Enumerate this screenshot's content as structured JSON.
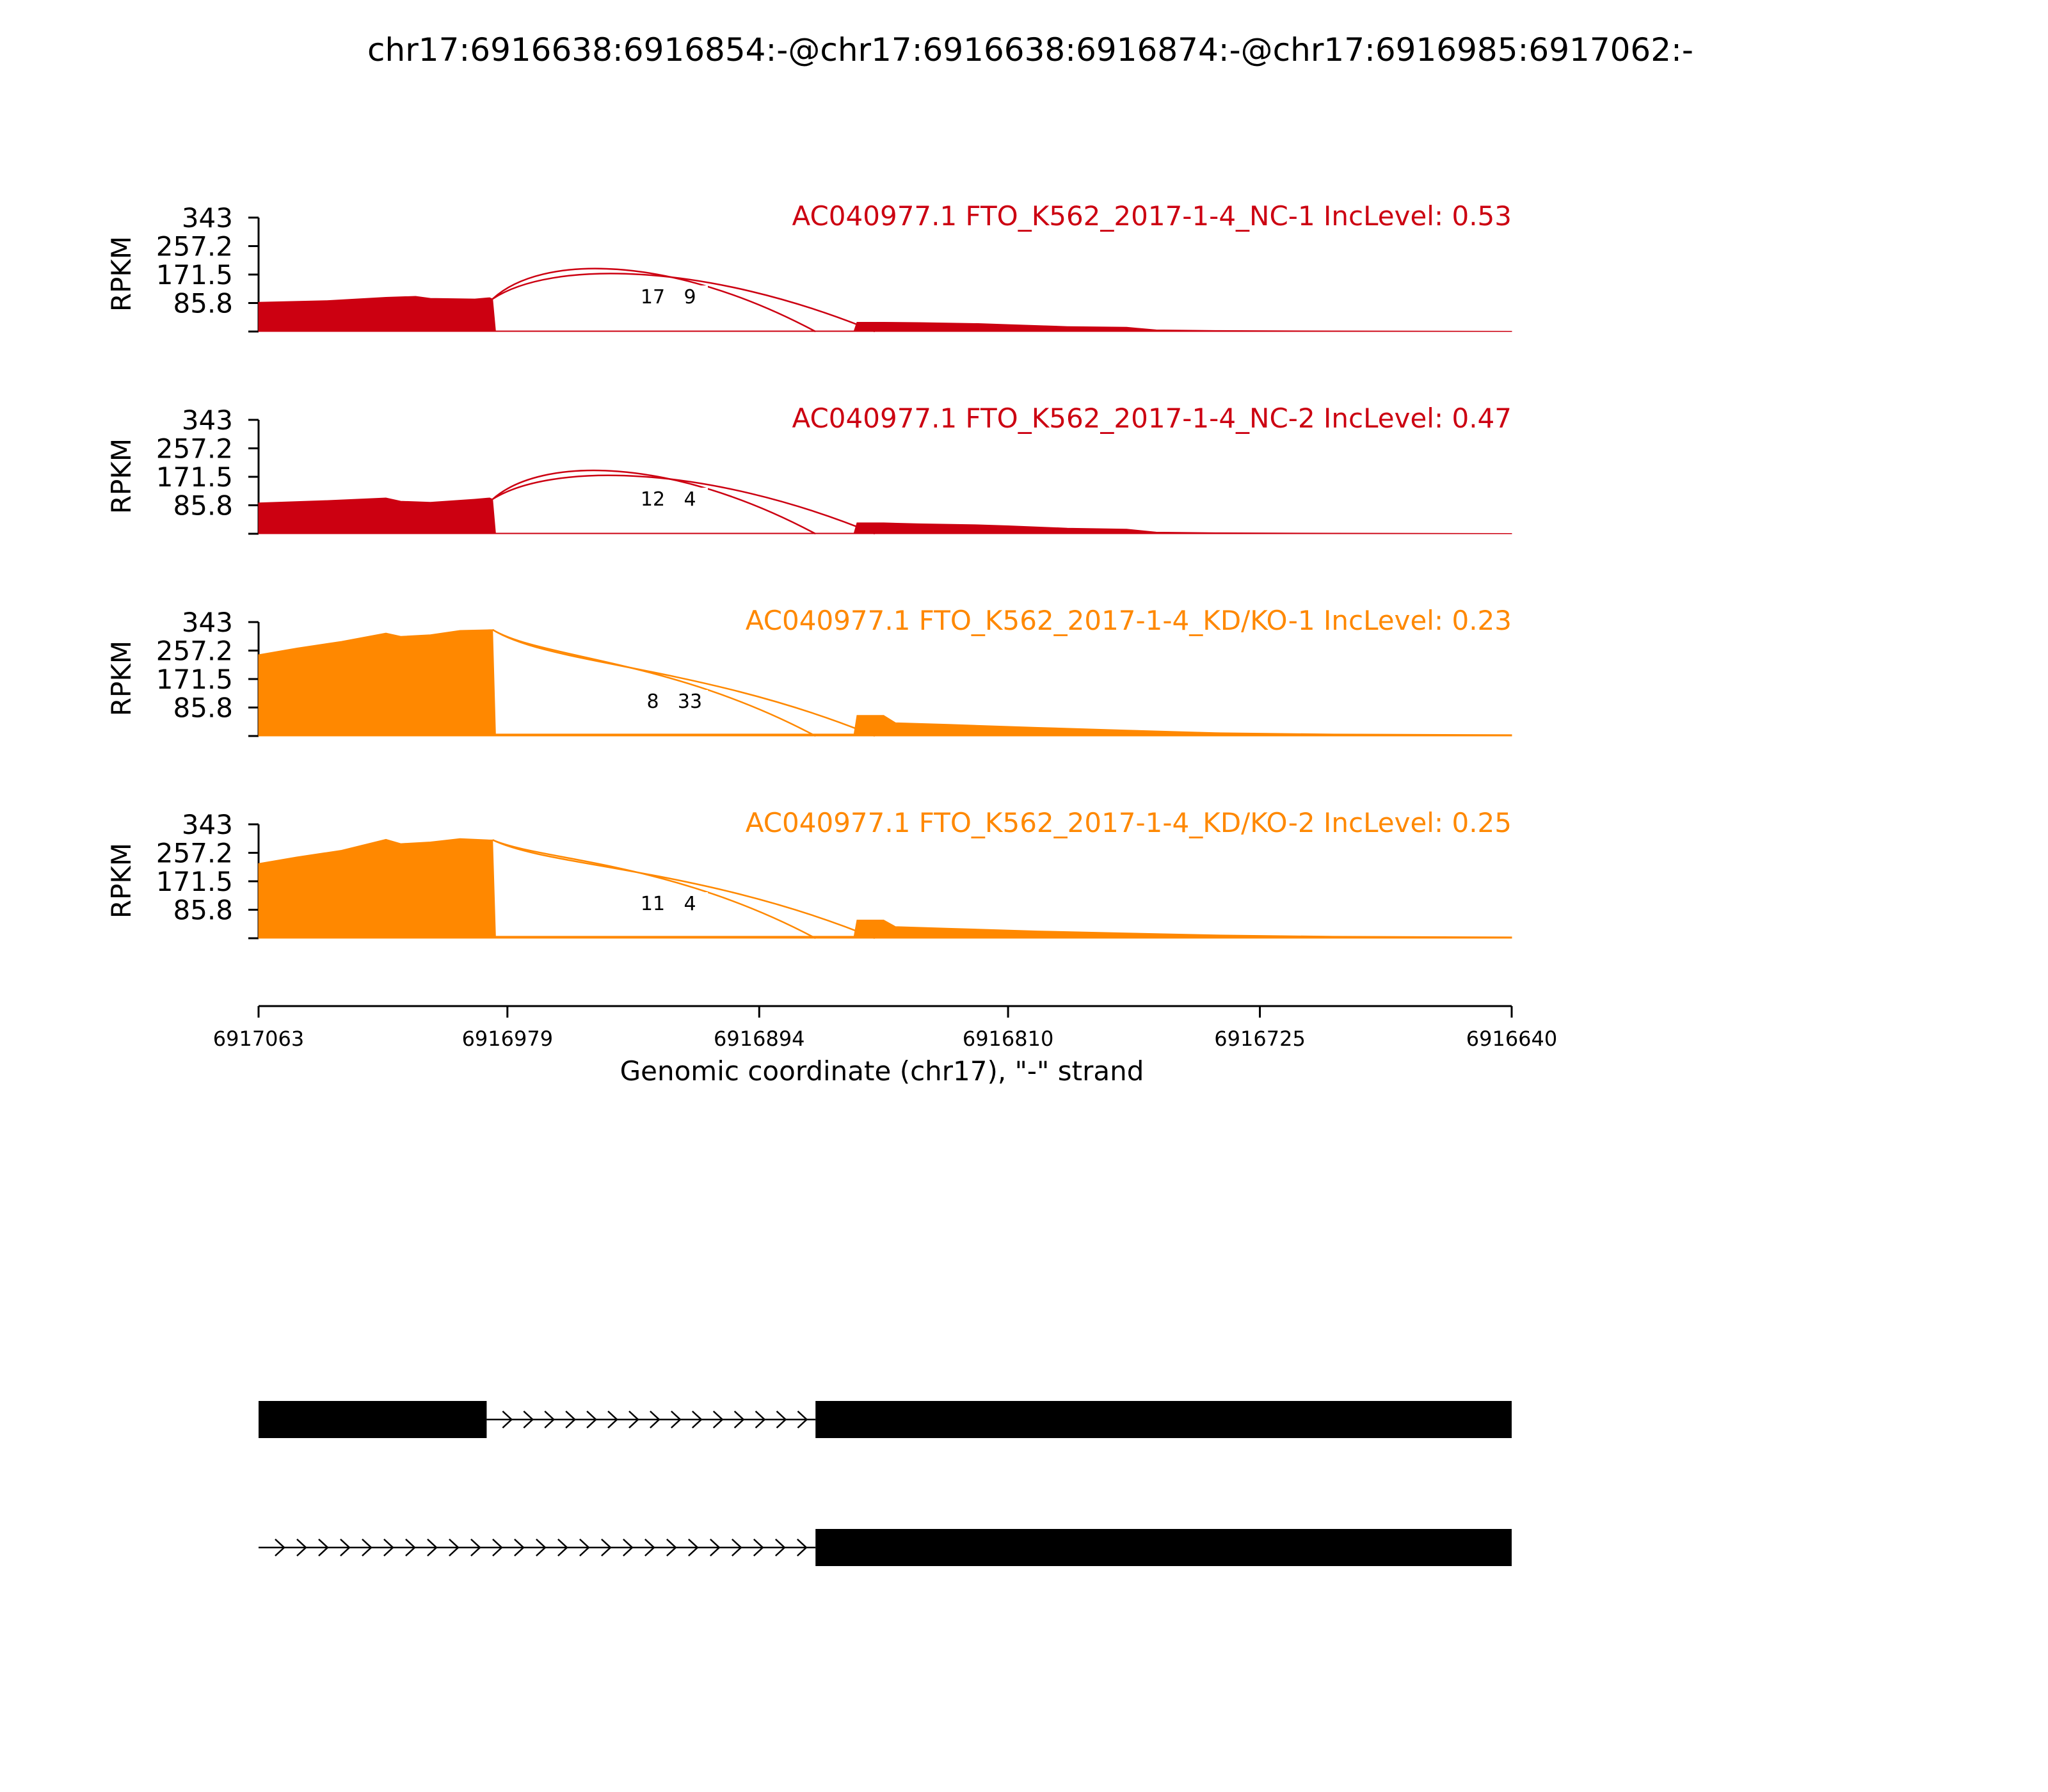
{
  "chart_data": {
    "type": "area",
    "title": "chr17:6916638:6916854:-@chr17:6916638:6916874:-@chr17:6916985:6917062:-",
    "xlabel": "Genomic coordinate (chr17), \"-\" strand",
    "ylabel": "RPKM",
    "x_reversed": true,
    "xlim": [
      6917063,
      6916640
    ],
    "xticks": [
      "6917063",
      "6916979",
      "6916894",
      "6916810",
      "6916725",
      "6916640"
    ],
    "ylim": [
      0,
      343
    ],
    "yticks": [
      "343",
      "257.2",
      "171.5",
      "85.8"
    ],
    "series": [
      {
        "name": "AC040977.1 FTO_K562_2017-1-4_NC-1 IncLevel: 0.53",
        "color": "#CC0011",
        "coverage": [
          [
            6917063,
            88
          ],
          [
            6917040,
            93
          ],
          [
            6917020,
            103
          ],
          [
            6917010,
            106
          ],
          [
            6917005,
            100
          ],
          [
            6916990,
            98
          ],
          [
            6916985,
            102
          ],
          [
            6916984,
            98
          ],
          [
            6916983,
            2
          ],
          [
            6916880,
            2
          ],
          [
            6916862,
            2
          ],
          [
            6916861,
            28
          ],
          [
            6916852,
            28
          ],
          [
            6916840,
            27
          ],
          [
            6916820,
            24
          ],
          [
            6916810,
            21
          ],
          [
            6916790,
            15
          ],
          [
            6916770,
            13
          ],
          [
            6916760,
            5
          ],
          [
            6916740,
            3
          ],
          [
            6916700,
            2
          ],
          [
            6916640,
            1
          ]
        ],
        "junctions": [
          {
            "start": 6916984,
            "end": 6916875,
            "count": "17"
          },
          {
            "start": 6916984,
            "end": 6916855,
            "count": "9"
          }
        ]
      },
      {
        "name": "AC040977.1 FTO_K562_2017-1-4_NC-2 IncLevel: 0.47",
        "color": "#CC0011",
        "coverage": [
          [
            6917063,
            93
          ],
          [
            6917040,
            100
          ],
          [
            6917020,
            108
          ],
          [
            6917015,
            98
          ],
          [
            6917005,
            95
          ],
          [
            6916990,
            104
          ],
          [
            6916985,
            108
          ],
          [
            6916984,
            104
          ],
          [
            6916983,
            2
          ],
          [
            6916880,
            2
          ],
          [
            6916862,
            2
          ],
          [
            6916861,
            33
          ],
          [
            6916852,
            33
          ],
          [
            6916840,
            30
          ],
          [
            6916820,
            27
          ],
          [
            6916810,
            24
          ],
          [
            6916790,
            17
          ],
          [
            6916770,
            14
          ],
          [
            6916760,
            5
          ],
          [
            6916740,
            3
          ],
          [
            6916700,
            2
          ],
          [
            6916640,
            1
          ]
        ],
        "junctions": [
          {
            "start": 6916984,
            "end": 6916875,
            "count": "12"
          },
          {
            "start": 6916984,
            "end": 6916855,
            "count": "4"
          }
        ]
      },
      {
        "name": "AC040977.1 FTO_K562_2017-1-4_KD/KO-1 IncLevel: 0.23",
        "color": "#FF8800",
        "coverage": [
          [
            6917063,
            245
          ],
          [
            6917050,
            265
          ],
          [
            6917035,
            285
          ],
          [
            6917020,
            310
          ],
          [
            6917015,
            300
          ],
          [
            6917005,
            305
          ],
          [
            6916995,
            318
          ],
          [
            6916985,
            320
          ],
          [
            6916984,
            320
          ],
          [
            6916983,
            6
          ],
          [
            6916880,
            6
          ],
          [
            6916862,
            6
          ],
          [
            6916861,
            62
          ],
          [
            6916852,
            62
          ],
          [
            6916848,
            40
          ],
          [
            6916830,
            35
          ],
          [
            6916800,
            26
          ],
          [
            6916770,
            18
          ],
          [
            6916740,
            10
          ],
          [
            6916700,
            6
          ],
          [
            6916640,
            4
          ]
        ],
        "junctions": [
          {
            "start": 6916984,
            "end": 6916875,
            "count": "8"
          },
          {
            "start": 6916984,
            "end": 6916855,
            "count": "33"
          }
        ]
      },
      {
        "name": "AC040977.1 FTO_K562_2017-1-4_KD/KO-2 IncLevel: 0.25",
        "color": "#FF8800",
        "coverage": [
          [
            6917063,
            225
          ],
          [
            6917050,
            245
          ],
          [
            6917035,
            265
          ],
          [
            6917020,
            298
          ],
          [
            6917015,
            285
          ],
          [
            6917005,
            290
          ],
          [
            6916995,
            300
          ],
          [
            6916985,
            296
          ],
          [
            6916984,
            296
          ],
          [
            6916983,
            6
          ],
          [
            6916880,
            6
          ],
          [
            6916862,
            6
          ],
          [
            6916861,
            55
          ],
          [
            6916852,
            55
          ],
          [
            6916848,
            35
          ],
          [
            6916830,
            30
          ],
          [
            6916800,
            22
          ],
          [
            6916770,
            16
          ],
          [
            6916740,
            10
          ],
          [
            6916700,
            6
          ],
          [
            6916640,
            4
          ]
        ],
        "junctions": [
          {
            "start": 6916984,
            "end": 6916875,
            "count": "11"
          },
          {
            "start": 6916984,
            "end": 6916855,
            "count": "4"
          }
        ]
      }
    ],
    "transcripts": [
      {
        "exons": [
          [
            6917063,
            6916986
          ],
          [
            6916875,
            6916640
          ]
        ],
        "introns": [
          [
            6916986,
            6916875
          ]
        ]
      },
      {
        "exons": [
          [
            6916875,
            6916640
          ]
        ],
        "introns": [
          [
            6917063,
            6916875
          ]
        ]
      }
    ]
  }
}
